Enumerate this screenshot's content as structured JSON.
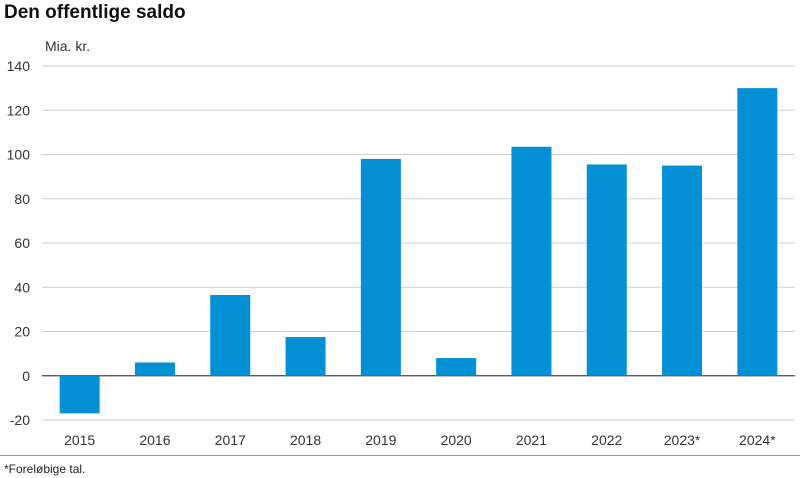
{
  "chart_data": {
    "type": "bar",
    "title": "Den offentlige saldo",
    "ylabel": "Mia. kr.",
    "categories": [
      "2015",
      "2016",
      "2017",
      "2018",
      "2019",
      "2020",
      "2021",
      "2022",
      "2023*",
      "2024*"
    ],
    "values": [
      -17,
      6,
      36.5,
      17.5,
      98,
      8,
      103.5,
      95.5,
      95,
      130
    ],
    "ylim": [
      -20,
      140
    ],
    "yticks": [
      -20,
      0,
      20,
      40,
      60,
      80,
      100,
      120,
      140
    ],
    "grid": true,
    "bar_color": "#0490d4",
    "footnote": "*Foreløbige tal."
  }
}
